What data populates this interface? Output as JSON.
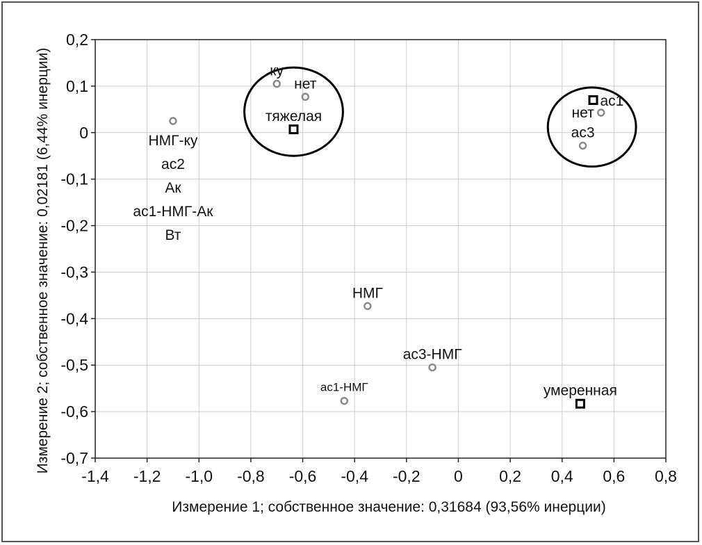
{
  "chart_data": {
    "type": "scatter",
    "xlabel": "Измерение 1; собственное значение: 0,31684 (93,56% инерции)",
    "ylabel": "Измерение 2; собственное значение: 0,02181 (6,44% инерции)",
    "xlim": [
      -1.4,
      0.8
    ],
    "ylim": [
      -0.7,
      0.2
    ],
    "x_ticks": [
      -1.4,
      -1.2,
      -1.0,
      -0.8,
      -0.6,
      -0.4,
      -0.2,
      0,
      0.2,
      0.4,
      0.6,
      0.8
    ],
    "x_tick_labels": [
      "-1,4",
      "-1,2",
      "-1,0",
      "-0,8",
      "-0,6",
      "-0,4",
      "-0,2",
      "0",
      "0,2",
      "0,4",
      "0,6",
      "0,8"
    ],
    "y_ticks": [
      0.2,
      0.1,
      0,
      -0.1,
      -0.2,
      -0.3,
      -0.4,
      -0.5,
      -0.6,
      -0.7
    ],
    "y_tick_labels": [
      "0,2",
      "0,1",
      "0",
      "-0,1",
      "-0,2",
      "-0,3",
      "-0,4",
      "-0,5",
      "-0,6",
      "-0,7"
    ],
    "grid": true,
    "row_points": [
      {
        "x": -1.1,
        "y": 0.025,
        "labels": [
          "НМГ-ку",
          "ас2",
          "Ак",
          "ас1-НМГ-Ак",
          "Вт"
        ],
        "label_pos": "below-stack"
      },
      {
        "x": -0.7,
        "y": 0.105,
        "labels": [
          "ку"
        ],
        "label_pos": "above"
      },
      {
        "x": -0.59,
        "y": 0.077,
        "labels": [
          "нет"
        ],
        "label_pos": "above"
      },
      {
        "x": -0.35,
        "y": -0.373,
        "labels": [
          "НМГ"
        ],
        "label_pos": "above"
      },
      {
        "x": -0.1,
        "y": -0.505,
        "labels": [
          "ас3-НМГ"
        ],
        "label_pos": "above"
      },
      {
        "x": -0.44,
        "y": -0.577,
        "labels": [
          "ас1-НМГ"
        ],
        "label_pos": "above-small"
      },
      {
        "x": 0.55,
        "y": 0.043,
        "labels": [
          "нет"
        ],
        "label_pos": "left"
      },
      {
        "x": 0.48,
        "y": -0.028,
        "labels": [
          "ас3"
        ],
        "label_pos": "above"
      }
    ],
    "column_points": [
      {
        "x": -0.635,
        "y": 0.007,
        "labels": [
          "тяжелая"
        ],
        "label_pos": "above"
      },
      {
        "x": 0.52,
        "y": 0.07,
        "labels": [
          "ас1"
        ],
        "label_pos": "right"
      },
      {
        "x": 0.47,
        "y": -0.583,
        "labels": [
          "умеренная"
        ],
        "label_pos": "above"
      }
    ],
    "circles": [
      {
        "cx": -0.635,
        "cy": 0.045,
        "rx": 0.19,
        "ry": 0.095
      },
      {
        "cx": 0.515,
        "cy": 0.012,
        "rx": 0.17,
        "ry": 0.085
      }
    ],
    "colors": {
      "row_point": "#8a8a8a",
      "column_point": "#000000",
      "grid": "#cccccc",
      "frame": "#555555"
    }
  }
}
